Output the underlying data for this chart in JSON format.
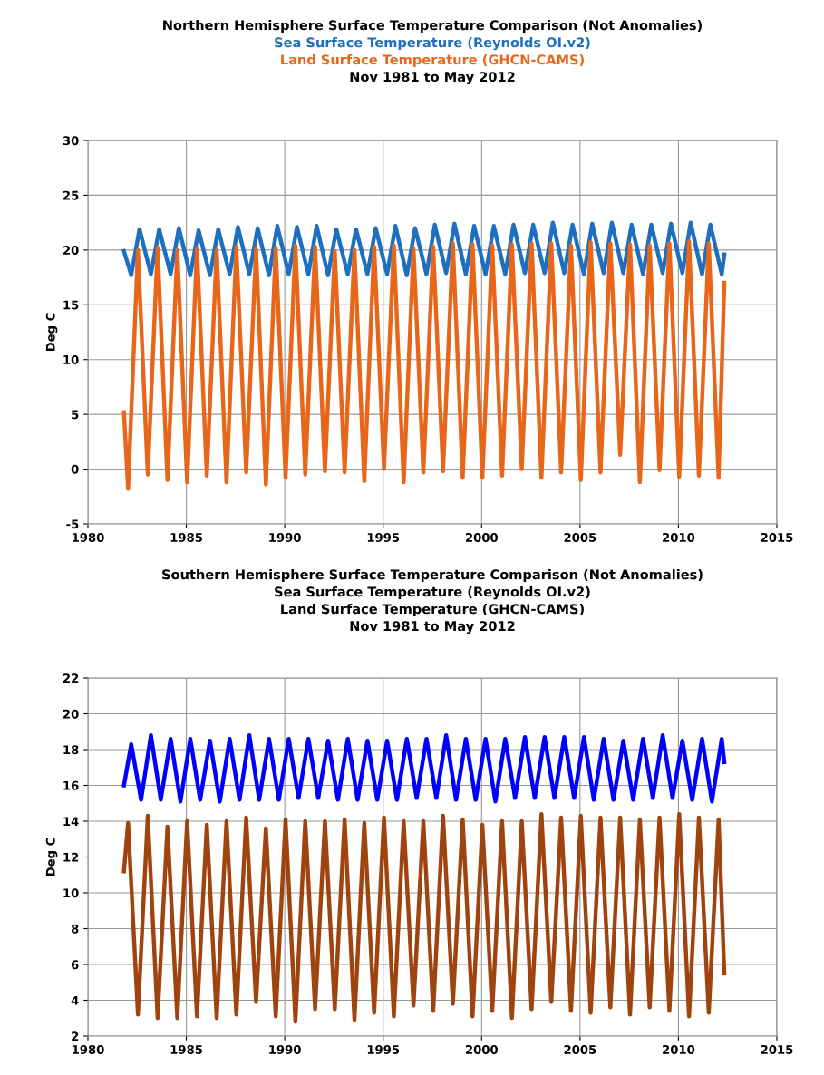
{
  "chart_data": [
    {
      "type": "line",
      "title": "Northern Hemisphere Surface Temperature Comparison (Not Anomalies)",
      "subtitle": "Nov 1981 to May 2012",
      "ylabel": "Deg C",
      "xlim": [
        1980,
        2015
      ],
      "xticks": [
        1980,
        1985,
        1990,
        1995,
        2000,
        2005,
        2010,
        2015
      ],
      "ylim": [
        -5,
        30
      ],
      "yticks": [
        -5,
        0,
        5,
        10,
        15,
        20,
        25,
        30
      ],
      "grid": true,
      "legend": "top",
      "marker": "none",
      "line_style": "solid",
      "series": [
        {
          "name": "Sea Surface Temperature (Reynolds OI.v2)",
          "color": "#1f6fc0",
          "x": [
            1981.83,
            1982.2,
            1982.62,
            1983.2,
            1983.62,
            1984.2,
            1984.62,
            1985.2,
            1985.62,
            1986.2,
            1986.62,
            1987.2,
            1987.62,
            1988.2,
            1988.62,
            1989.2,
            1989.62,
            1990.2,
            1990.62,
            1991.2,
            1991.62,
            1992.2,
            1992.62,
            1993.2,
            1993.62,
            1994.2,
            1994.62,
            1995.2,
            1995.62,
            1996.2,
            1996.62,
            1997.2,
            1997.62,
            1998.2,
            1998.62,
            1999.2,
            1999.62,
            2000.2,
            2000.62,
            2001.2,
            2001.62,
            2002.2,
            2002.62,
            2003.2,
            2003.62,
            2004.2,
            2004.62,
            2005.2,
            2005.62,
            2006.2,
            2006.62,
            2007.2,
            2007.62,
            2008.2,
            2008.62,
            2009.2,
            2009.62,
            2010.2,
            2010.62,
            2011.2,
            2011.62,
            2012.2,
            2012.33
          ],
          "values": [
            19.9,
            17.7,
            21.9,
            17.8,
            21.9,
            17.8,
            22.0,
            17.7,
            21.8,
            17.7,
            21.9,
            17.8,
            22.1,
            17.8,
            22.0,
            17.7,
            22.2,
            17.8,
            22.1,
            17.8,
            22.2,
            17.7,
            21.9,
            17.8,
            21.9,
            17.8,
            22.0,
            17.8,
            22.2,
            17.7,
            22.0,
            17.8,
            22.3,
            17.9,
            22.4,
            17.8,
            22.2,
            17.8,
            22.2,
            17.8,
            22.3,
            17.9,
            22.3,
            17.9,
            22.5,
            17.9,
            22.3,
            17.8,
            22.4,
            17.9,
            22.5,
            17.9,
            22.3,
            17.8,
            22.3,
            17.9,
            22.4,
            17.9,
            22.5,
            17.8,
            22.3,
            17.8,
            19.6
          ]
        },
        {
          "name": "Land Surface Temperature (GHCN-CAMS)",
          "color": "#e8661a",
          "x": [
            1981.83,
            1982.04,
            1982.54,
            1983.04,
            1983.54,
            1984.04,
            1984.54,
            1985.04,
            1985.54,
            1986.04,
            1986.54,
            1987.04,
            1987.54,
            1988.04,
            1988.54,
            1989.04,
            1989.54,
            1990.04,
            1990.54,
            1991.04,
            1991.54,
            1992.04,
            1992.54,
            1993.04,
            1993.54,
            1994.04,
            1994.54,
            1995.04,
            1995.54,
            1996.04,
            1996.54,
            1997.04,
            1997.54,
            1998.04,
            1998.54,
            1999.04,
            1999.54,
            2000.04,
            2000.54,
            2001.04,
            2001.54,
            2002.04,
            2002.54,
            2003.04,
            2003.54,
            2004.04,
            2004.54,
            2005.04,
            2005.54,
            2006.04,
            2006.54,
            2007.04,
            2007.54,
            2008.04,
            2008.54,
            2009.04,
            2009.54,
            2010.04,
            2010.54,
            2011.04,
            2011.54,
            2012.04,
            2012.33
          ],
          "values": [
            5.2,
            -1.8,
            20.0,
            -0.5,
            20.2,
            -1.0,
            20.0,
            -1.2,
            20.1,
            -0.6,
            20.0,
            -1.2,
            20.3,
            -0.3,
            20.1,
            -1.4,
            20.2,
            -0.8,
            20.4,
            -0.5,
            20.3,
            -0.2,
            19.9,
            -0.3,
            20.0,
            -1.1,
            20.3,
            0.0,
            20.4,
            -1.2,
            20.1,
            -0.3,
            20.3,
            -0.2,
            20.6,
            -0.8,
            20.5,
            -0.8,
            20.4,
            -0.6,
            20.5,
            0.0,
            20.6,
            -0.8,
            20.6,
            -0.3,
            20.4,
            -1.0,
            20.7,
            -0.3,
            20.6,
            1.3,
            20.5,
            -1.2,
            20.4,
            -0.1,
            20.6,
            -0.7,
            20.8,
            -0.6,
            20.6,
            -0.8,
            17.0
          ]
        }
      ]
    },
    {
      "type": "line",
      "title": "Southern Hemisphere Surface Temperature Comparison (Not Anomalies)",
      "subtitle": "Nov 1981 to May 2012",
      "ylabel": "Deg C",
      "annotations": [
        "Sea Surface Temperature (Reynolds OI.v2)",
        "Land Surface Temperature (GHCN-CAMS)"
      ],
      "xlim": [
        1980,
        2015
      ],
      "xticks": [
        1980,
        1985,
        1990,
        1995,
        2000,
        2005,
        2010,
        2015
      ],
      "ylim": [
        2,
        22
      ],
      "yticks": [
        2,
        4,
        6,
        8,
        10,
        12,
        14,
        16,
        18,
        20,
        22
      ],
      "grid": true,
      "marker": "none",
      "line_style": "solid",
      "series": [
        {
          "color": "#0000ff",
          "x": [
            1981.83,
            1982.2,
            1982.7,
            1983.2,
            1983.7,
            1984.2,
            1984.7,
            1985.2,
            1985.7,
            1986.2,
            1986.7,
            1987.2,
            1987.7,
            1988.2,
            1988.7,
            1989.2,
            1989.7,
            1990.2,
            1990.7,
            1991.2,
            1991.7,
            1992.2,
            1992.7,
            1993.2,
            1993.7,
            1994.2,
            1994.7,
            1995.2,
            1995.7,
            1996.2,
            1996.7,
            1997.2,
            1997.7,
            1998.2,
            1998.7,
            1999.2,
            1999.7,
            2000.2,
            2000.7,
            2001.2,
            2001.7,
            2002.2,
            2002.7,
            2003.2,
            2003.7,
            2004.2,
            2004.7,
            2005.2,
            2005.7,
            2006.2,
            2006.7,
            2007.2,
            2007.7,
            2008.2,
            2008.7,
            2009.2,
            2009.7,
            2010.2,
            2010.7,
            2011.2,
            2011.7,
            2012.2,
            2012.33
          ],
          "values": [
            16.0,
            18.3,
            15.2,
            18.8,
            15.2,
            18.6,
            15.1,
            18.6,
            15.2,
            18.5,
            15.1,
            18.6,
            15.2,
            18.8,
            15.2,
            18.6,
            15.2,
            18.6,
            15.3,
            18.6,
            15.3,
            18.5,
            15.2,
            18.6,
            15.2,
            18.5,
            15.2,
            18.5,
            15.2,
            18.6,
            15.3,
            18.6,
            15.3,
            18.8,
            15.2,
            18.6,
            15.2,
            18.6,
            15.1,
            18.6,
            15.3,
            18.7,
            15.3,
            18.7,
            15.3,
            18.7,
            15.3,
            18.7,
            15.2,
            18.6,
            15.2,
            18.5,
            15.2,
            18.6,
            15.3,
            18.8,
            15.3,
            18.5,
            15.2,
            18.6,
            15.1,
            18.6,
            17.3
          ]
        },
        {
          "color": "#a0440f",
          "x": [
            1981.83,
            1982.04,
            1982.54,
            1983.04,
            1983.54,
            1984.04,
            1984.54,
            1985.04,
            1985.54,
            1986.04,
            1986.54,
            1987.04,
            1987.54,
            1988.04,
            1988.54,
            1989.04,
            1989.54,
            1990.04,
            1990.54,
            1991.04,
            1991.54,
            1992.04,
            1992.54,
            1993.04,
            1993.54,
            1994.04,
            1994.54,
            1995.04,
            1995.54,
            1996.04,
            1996.54,
            1997.04,
            1997.54,
            1998.04,
            1998.54,
            1999.04,
            1999.54,
            2000.04,
            2000.54,
            2001.04,
            2001.54,
            2002.04,
            2002.54,
            2003.04,
            2003.54,
            2004.04,
            2004.54,
            2005.04,
            2005.54,
            2006.04,
            2006.54,
            2007.04,
            2007.54,
            2008.04,
            2008.54,
            2009.04,
            2009.54,
            2010.04,
            2010.54,
            2011.04,
            2011.54,
            2012.04,
            2012.33
          ],
          "values": [
            11.2,
            13.9,
            3.2,
            14.3,
            3.0,
            13.7,
            3.0,
            14.0,
            3.1,
            13.8,
            3.0,
            14.0,
            3.2,
            14.2,
            3.9,
            13.6,
            3.1,
            14.1,
            2.8,
            14.0,
            3.5,
            14.0,
            3.5,
            14.1,
            2.9,
            13.9,
            3.3,
            14.2,
            3.1,
            14.0,
            3.7,
            14.0,
            3.4,
            14.3,
            3.8,
            14.1,
            3.1,
            13.8,
            3.4,
            14.0,
            3.0,
            14.0,
            3.5,
            14.4,
            3.9,
            14.2,
            3.4,
            14.3,
            3.3,
            14.2,
            3.6,
            14.2,
            3.2,
            14.1,
            3.6,
            14.2,
            3.4,
            14.4,
            3.1,
            14.2,
            3.3,
            14.1,
            5.5
          ]
        }
      ]
    }
  ]
}
